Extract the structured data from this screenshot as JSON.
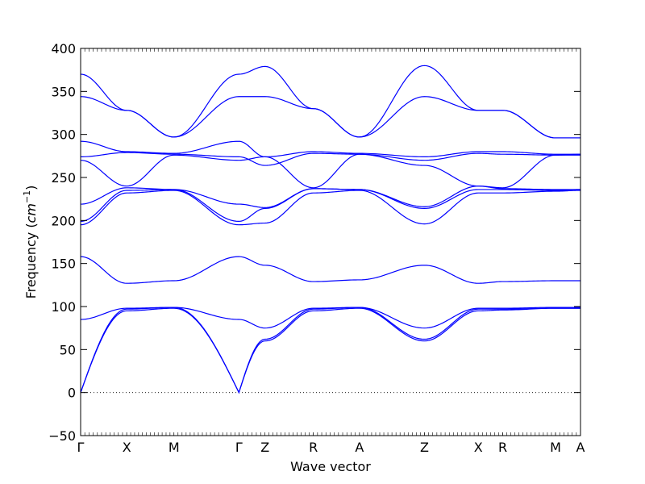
{
  "chart_data": {
    "type": "line",
    "title": "",
    "xlabel": "Wave vector",
    "ylabel": "Frequency (",
    "ylabel_unit": "cm",
    "ylabel_exponent": "−1",
    "ylabel_suffix": ")",
    "ylim": [
      -50,
      400
    ],
    "yticks": [
      -50,
      0,
      50,
      100,
      150,
      200,
      250,
      300,
      350,
      400
    ],
    "ytick_labels": [
      "−50",
      "0",
      "50",
      "100",
      "150",
      "200",
      "250",
      "300",
      "350",
      "400"
    ],
    "xlim": [
      0,
      9
    ],
    "special_points": [
      {
        "label": "Γ",
        "x": 0
      },
      {
        "label": "X",
        "x": 0.83
      },
      {
        "label": "M",
        "x": 1.68
      },
      {
        "label": "Γ",
        "x": 2.85
      },
      {
        "label": "Z",
        "x": 3.32
      },
      {
        "label": "R",
        "x": 4.19
      },
      {
        "label": "A",
        "x": 5.02
      },
      {
        "label": "Z",
        "x": 6.19
      },
      {
        "label": "X",
        "x": 7.16
      },
      {
        "label": "R",
        "x": 7.6
      },
      {
        "label": "M",
        "x": 8.55
      },
      {
        "label": "A",
        "x": 9
      }
    ],
    "zero_line": true,
    "line_color": "#0000ff",
    "series": [
      {
        "x": [
          0,
          0.83,
          1.68,
          2.85,
          3.32,
          4.19,
          5.02,
          6.19,
          7.16,
          7.6,
          8.55,
          9
        ],
        "y": [
          0,
          95,
          98,
          0,
          60,
          95,
          98,
          60,
          95,
          96,
          98,
          98
        ]
      },
      {
        "x": [
          0,
          0.83,
          1.68,
          2.85,
          3.32,
          4.19,
          5.02,
          6.19,
          7.16,
          7.6,
          8.55,
          9
        ],
        "y": [
          0,
          97,
          99,
          0,
          62,
          97,
          99,
          62,
          97,
          97,
          98,
          98
        ]
      },
      {
        "x": [
          0,
          0.83,
          1.68,
          2.85,
          3.32,
          4.19,
          5.02,
          6.19,
          7.16,
          7.6,
          8.55,
          9
        ],
        "y": [
          85,
          98,
          99,
          85,
          75,
          98,
          99,
          75,
          98,
          98,
          99,
          99
        ]
      },
      {
        "x": [
          0,
          0.83,
          1.68,
          2.85,
          3.32,
          4.19,
          5.02,
          6.19,
          7.16,
          7.6,
          8.55,
          9
        ],
        "y": [
          158,
          127,
          130,
          158,
          148,
          129,
          131,
          148,
          127,
          129,
          130,
          130
        ]
      },
      {
        "x": [
          0,
          0.83,
          1.68,
          2.85,
          3.32,
          4.19,
          5.02,
          6.19,
          7.16,
          7.6,
          8.55,
          9
        ],
        "y": [
          195,
          232,
          235,
          195,
          197,
          232,
          235,
          196,
          232,
          232,
          234,
          235
        ]
      },
      {
        "x": [
          0,
          0.83,
          1.68,
          2.85,
          3.32,
          4.19,
          5.02,
          6.19,
          7.16,
          7.6,
          8.55,
          9
        ],
        "y": [
          199,
          235,
          236,
          199,
          214,
          237,
          236,
          214,
          236,
          236,
          235,
          236
        ]
      },
      {
        "x": [
          0,
          0.83,
          1.68,
          2.85,
          3.32,
          4.19,
          5.02,
          6.19,
          7.16,
          7.6,
          8.55,
          9
        ],
        "y": [
          219,
          238,
          236,
          219,
          215,
          237,
          236,
          216,
          240,
          237,
          236,
          236
        ]
      },
      {
        "x": [
          0,
          0.83,
          1.68,
          2.85,
          3.32,
          4.19,
          5.02,
          6.19,
          7.16,
          7.6,
          8.55,
          9
        ],
        "y": [
          270,
          240,
          276,
          270,
          274,
          238,
          277,
          264,
          240,
          238,
          276,
          276
        ]
      },
      {
        "x": [
          0,
          0.83,
          1.68,
          2.85,
          3.32,
          4.19,
          5.02,
          6.19,
          7.16,
          7.6,
          8.55,
          9
        ],
        "y": [
          274,
          279,
          277,
          274,
          264,
          278,
          277,
          270,
          278,
          277,
          276,
          277
        ]
      },
      {
        "x": [
          0,
          0.83,
          1.68,
          2.85,
          3.32,
          4.19,
          5.02,
          6.19,
          7.16,
          7.6,
          8.55,
          9
        ],
        "y": [
          292,
          280,
          278,
          292,
          274,
          280,
          278,
          274,
          280,
          280,
          277,
          277
        ]
      },
      {
        "x": [
          0,
          0.83,
          1.68,
          2.85,
          3.32,
          4.19,
          5.02,
          6.19,
          7.16,
          7.6,
          8.55,
          9
        ],
        "y": [
          344,
          328,
          297,
          344,
          344,
          330,
          297,
          344,
          328,
          328,
          296,
          296
        ]
      },
      {
        "x": [
          0,
          0.83,
          1.68,
          2.85,
          3.32,
          4.19,
          5.02,
          6.19,
          7.16,
          7.6,
          8.55,
          9
        ],
        "y": [
          370,
          328,
          297,
          370,
          379,
          330,
          297,
          380,
          328,
          328,
          296,
          296
        ]
      }
    ]
  }
}
